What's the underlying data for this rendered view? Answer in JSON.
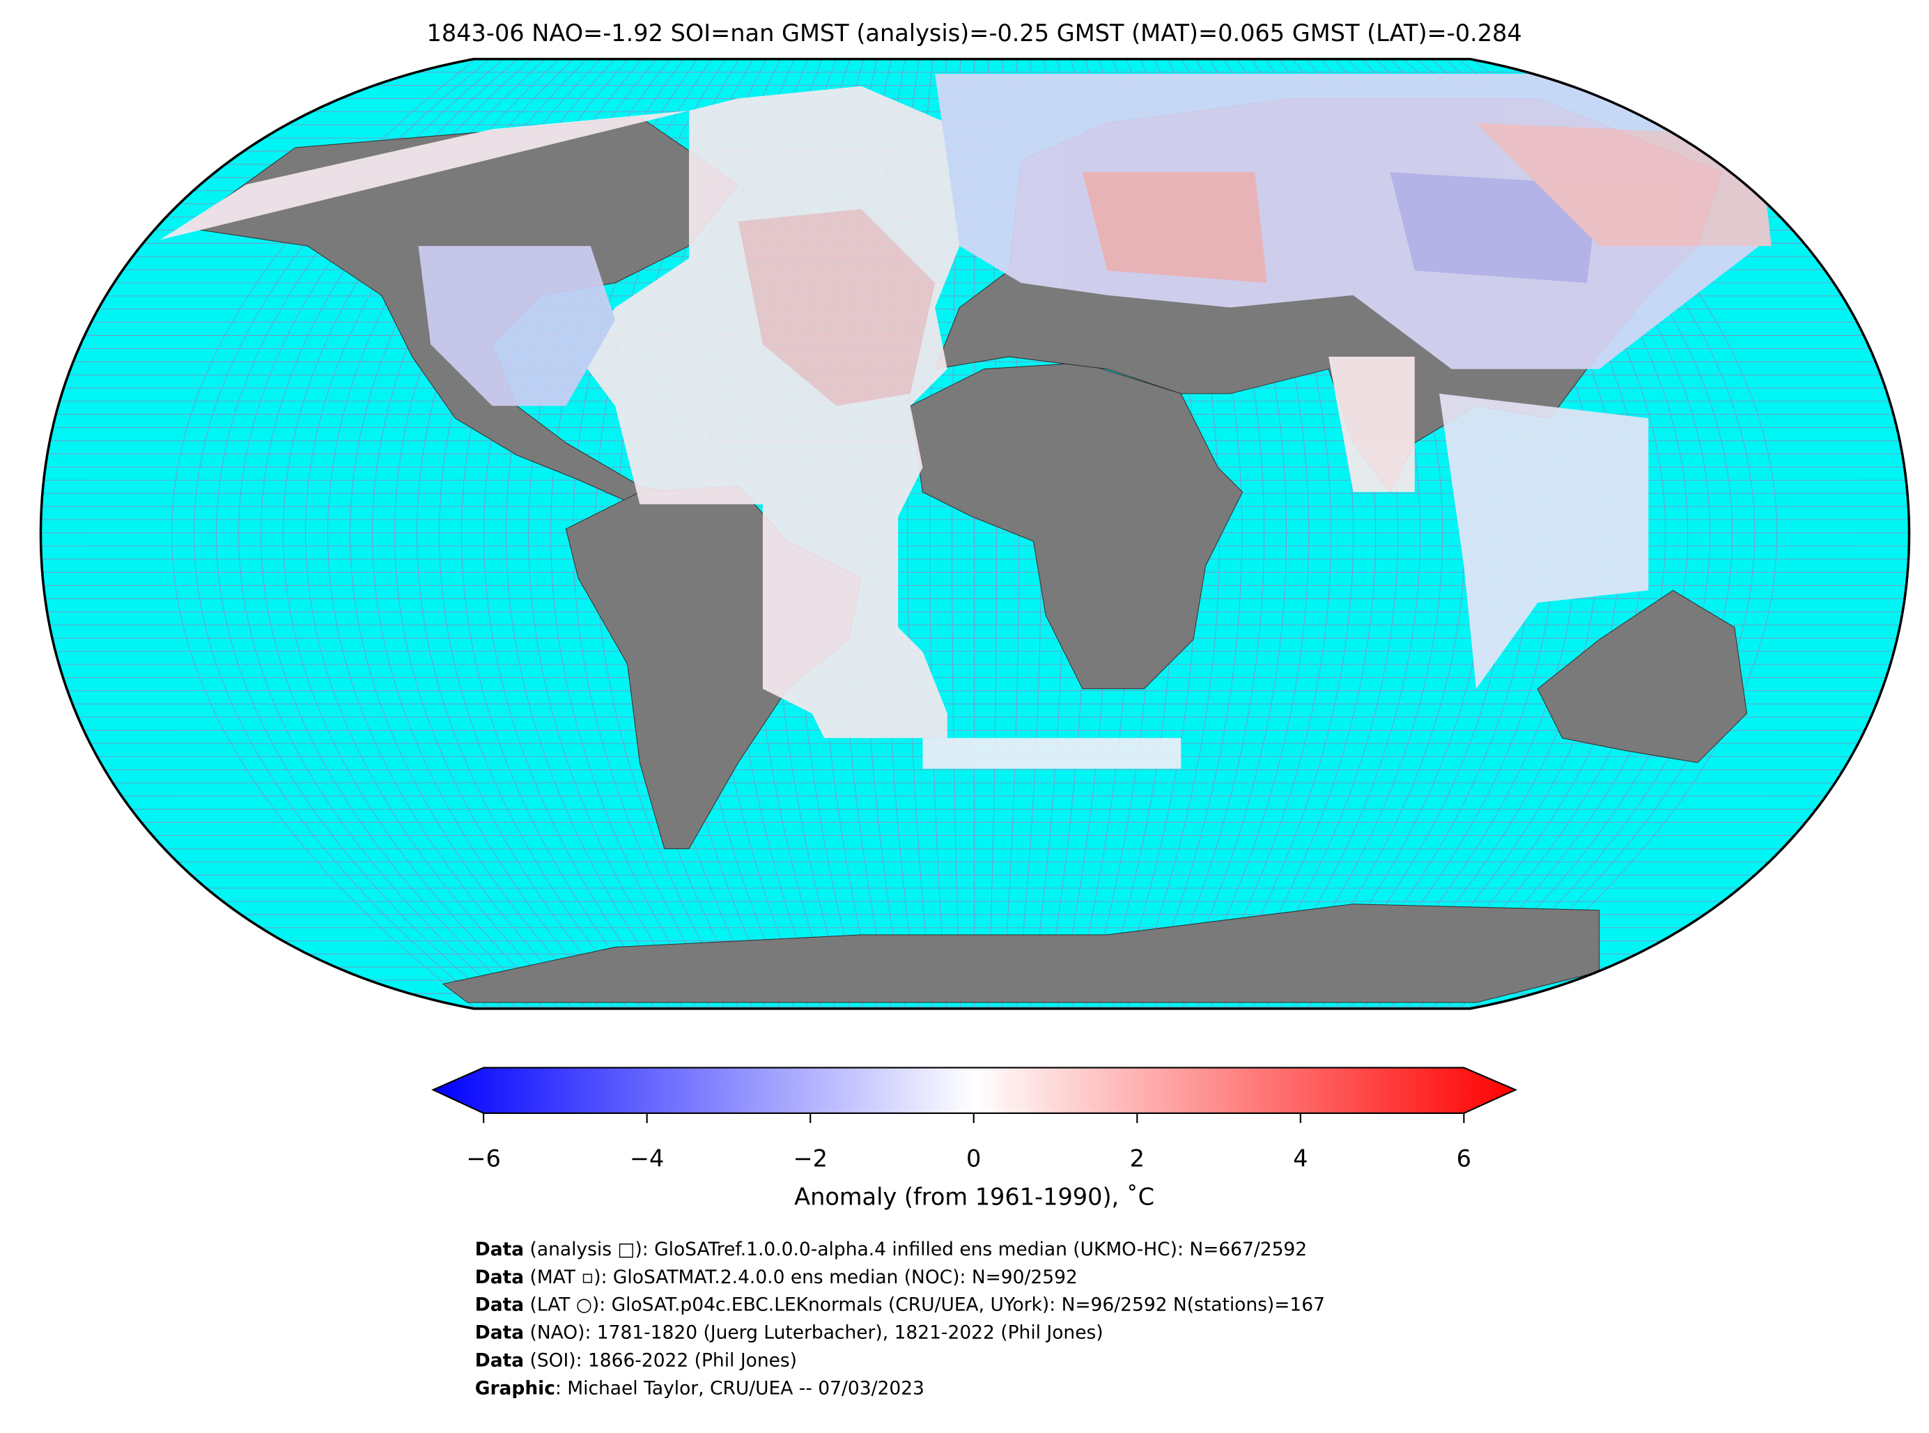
{
  "title": "1843-06 NAO=-1.92 SOI=nan GMST (analysis)=-0.25 GMST (MAT)=0.065 GMST (LAT)=-0.284",
  "colorbar": {
    "label": "Anomaly (from 1961-1990), ˚C",
    "lim": [
      -6,
      6
    ],
    "ticks": [
      {
        "value": -6,
        "label": "−6"
      },
      {
        "value": -4,
        "label": "−4"
      },
      {
        "value": -2,
        "label": "−2"
      },
      0,
      2,
      4,
      6
    ]
  },
  "footer": [
    {
      "bold": "Data",
      "text": " (analysis □): GloSATref.1.0.0.0-alpha.4 infilled ens median (UKMO-HC): N=667/2592"
    },
    {
      "bold": "Data",
      "text": " (MAT ▫): GloSATMAT.2.4.0.0 ens median (NOC): N=90/2592"
    },
    {
      "bold": "Data",
      "text": " (LAT ○): GloSAT.p04c.EBC.LEKnormals (CRU/UEA, UYork): N=96/2592 N(stations)=167"
    },
    {
      "bold": "Data",
      "text": " (NAO): 1781-1820 (Juerg Luterbacher), 1821-2022 (Phil Jones)"
    },
    {
      "bold": "Data",
      "text": " (SOI): 1866-2022 (Phil Jones)"
    },
    {
      "bold": "Graphic",
      "text": ": Michael Taylor, CRU/UEA -- 07/03/2023"
    }
  ]
}
